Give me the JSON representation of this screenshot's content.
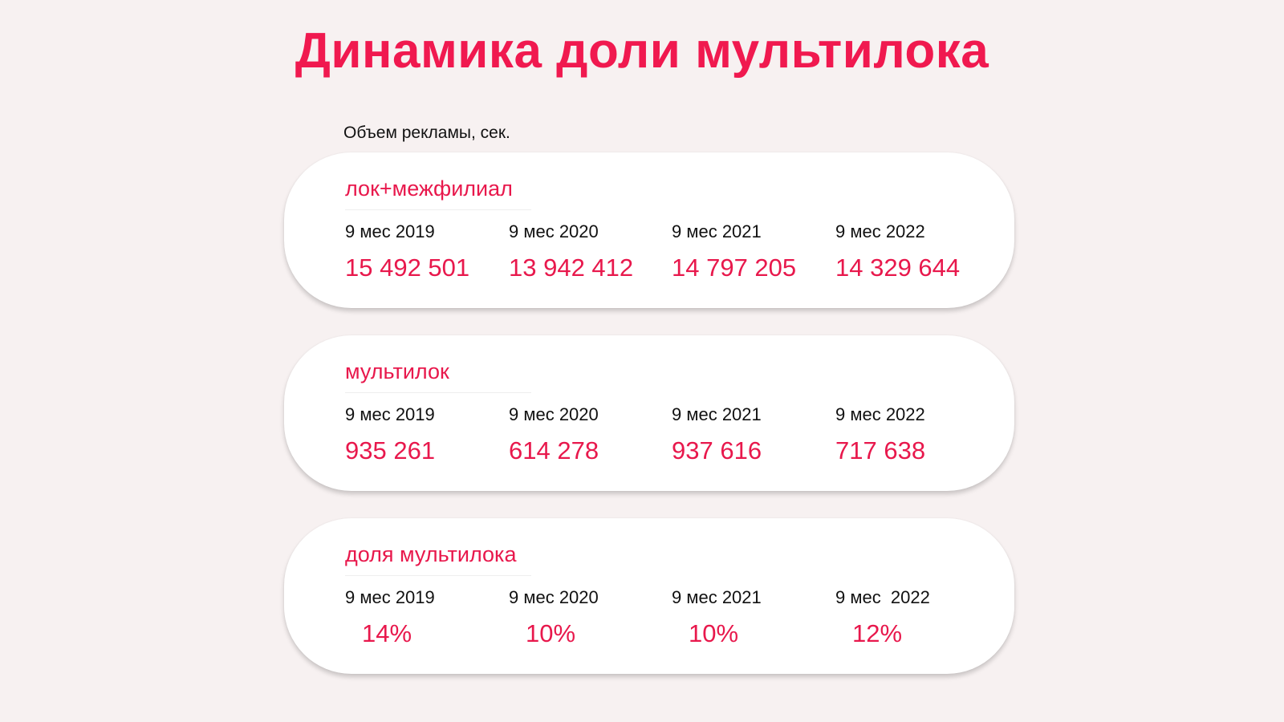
{
  "title": "Динамика доли мультилока",
  "subtitle": "Объем рекламы, сек.",
  "colors": {
    "accent": "#e8184c",
    "title": "#f0194f",
    "background": "#f7f1f1",
    "card": "#ffffff"
  },
  "cards": [
    {
      "label": "лок+межфилиал",
      "periods": [
        "9 мес 2019",
        "9 мес 2020",
        "9 мес 2021",
        "9 мес 2022"
      ],
      "values": [
        "15 492 501",
        "13 942 412",
        "14 797 205",
        "14 329 644"
      ]
    },
    {
      "label": "мультилок",
      "periods": [
        "9 мес 2019",
        "9 мес 2020",
        "9 мес 2021",
        "9 мес 2022"
      ],
      "values": [
        "935 261",
        "614 278",
        "937 616",
        "717 638"
      ]
    },
    {
      "label": "доля мультилока",
      "periods": [
        "9 мес 2019",
        "9 мес 2020",
        "9 мес 2021",
        "9 мес  2022"
      ],
      "values": [
        "14%",
        "10%",
        "10%",
        "12%"
      ]
    }
  ]
}
